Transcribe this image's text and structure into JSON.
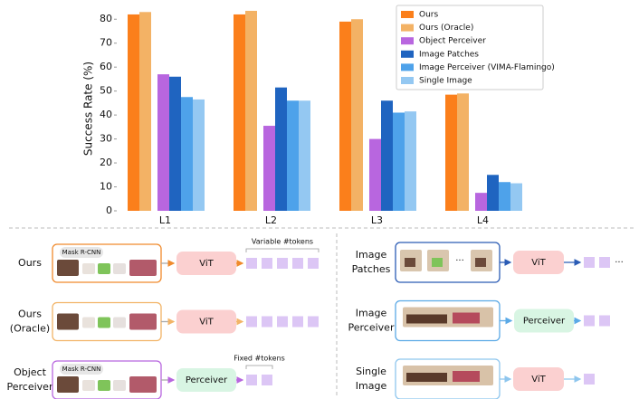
{
  "chart_data": {
    "type": "bar",
    "y_label": "Success Rate (%)",
    "categories": [
      "L1",
      "L2",
      "L3",
      "L4"
    ],
    "series": [
      {
        "name": "Ours",
        "color": "#fb7f1b",
        "values": [
          82,
          82,
          79,
          48.5
        ]
      },
      {
        "name": "Ours (Oracle)",
        "color": "#f3b265",
        "values": [
          83,
          83.5,
          80,
          49
        ]
      },
      {
        "name": "Object Perceiver",
        "color": "#b866df",
        "values": [
          57,
          35.5,
          30,
          7.5
        ]
      },
      {
        "name": "Image Patches",
        "color": "#1f64c0",
        "values": [
          56,
          51.5,
          46,
          15
        ]
      },
      {
        "name": "Image Perceiver (VIMA-Flamingo)",
        "color": "#4ea2ea",
        "values": [
          47.5,
          46,
          41,
          12
        ]
      },
      {
        "name": "Single Image",
        "color": "#94c8f2",
        "values": [
          46.5,
          46,
          41.5,
          11.5
        ]
      }
    ],
    "ylim": [
      0,
      85
    ],
    "yticks": [
      0,
      10,
      20,
      30,
      40,
      50,
      60,
      70,
      80
    ],
    "grid": false,
    "legend": "upper right"
  },
  "diagram": {
    "left": [
      {
        "label": [
          "Ours"
        ],
        "tag": "Mask R-CNN",
        "encoder": "ViT",
        "note": "Variable #tokens"
      },
      {
        "label": [
          "Ours",
          "(Oracle)"
        ],
        "encoder": "ViT"
      },
      {
        "label": [
          "Object",
          "Perceiver"
        ],
        "tag": "Mask R-CNN",
        "encoder": "Perceiver",
        "note": "Fixed #tokens"
      }
    ],
    "right": [
      {
        "label": [
          "Image",
          "Patches"
        ],
        "encoder": "ViT",
        "input_ellipsis": "···",
        "token_ellipsis": "···"
      },
      {
        "label": [
          "Image",
          "Perceiver"
        ],
        "encoder": "Perceiver"
      },
      {
        "label": [
          "Single",
          "Image"
        ],
        "encoder": "ViT"
      }
    ]
  }
}
